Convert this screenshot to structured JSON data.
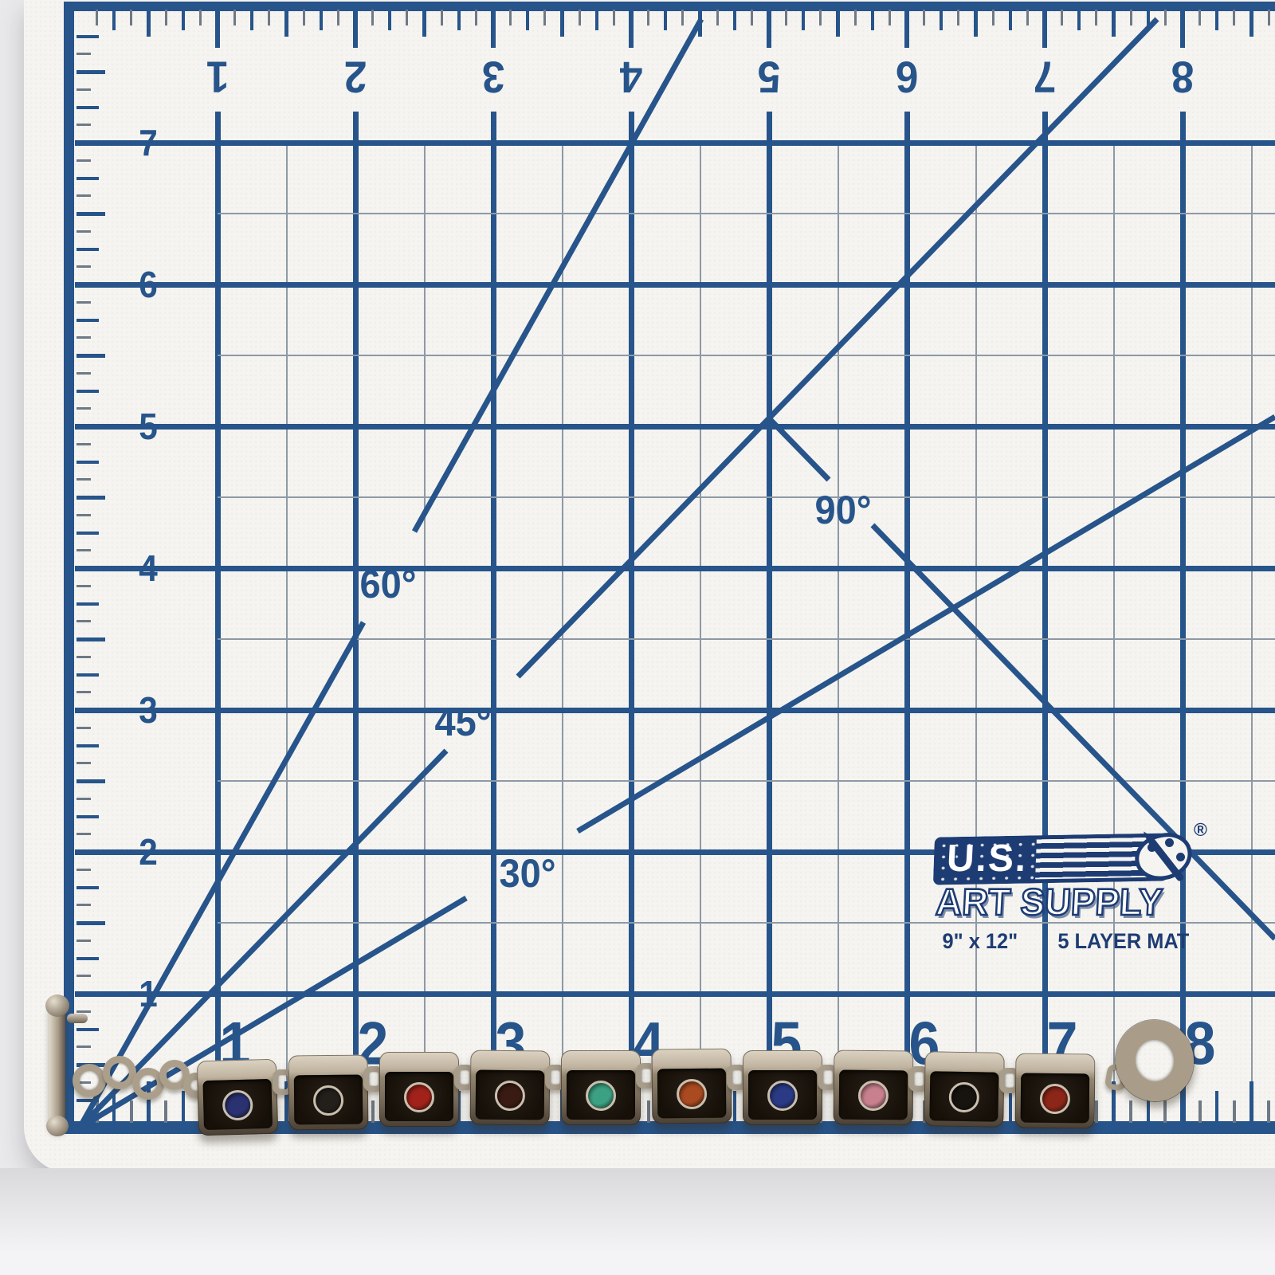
{
  "logo": {
    "us": "U.S.",
    "art_supply": "ART SUPPLY",
    "registered": "®",
    "size": "9\" x 12\"",
    "layers": "5 LAYER MAT"
  },
  "angles": {
    "a30": "30°",
    "a45": "45°",
    "a60": "60°",
    "a90": "90°"
  },
  "rulers": {
    "top": [
      "1",
      "2",
      "3",
      "4",
      "5",
      "6",
      "7",
      "8"
    ],
    "left": [
      "7",
      "6",
      "5",
      "4",
      "3",
      "2",
      "1"
    ],
    "bottom": [
      "1",
      "2",
      "3",
      "4",
      "5",
      "6",
      "7",
      "8"
    ]
  },
  "colors": {
    "grid_major": "#27548a",
    "grid_minor": "#8e99a6",
    "tick_minor": "#6e7987",
    "mat_surface": "#f5f4f0",
    "background": "#e9e9eb",
    "logo_navy": "#1e3c74",
    "silver": "#a89d8b",
    "enamel": "#17100b"
  },
  "bracelet": {
    "links": [
      {
        "stone": "lapis-blue",
        "color": "#2a3272"
      },
      {
        "stone": "dark-onyx",
        "color": "#23201c"
      },
      {
        "stone": "coral-red",
        "color": "#a1221a"
      },
      {
        "stone": "garnet-dark",
        "color": "#3a1b14"
      },
      {
        "stone": "turquoise",
        "color": "#3ca182"
      },
      {
        "stone": "orange-coral",
        "color": "#aa4a20"
      },
      {
        "stone": "lapis-blue",
        "color": "#2b3a85"
      },
      {
        "stone": "rhodonite-pink",
        "color": "#c8808f"
      },
      {
        "stone": "black-onyx",
        "color": "#17130f"
      },
      {
        "stone": "dark-red-coral",
        "color": "#8c2619"
      }
    ]
  }
}
